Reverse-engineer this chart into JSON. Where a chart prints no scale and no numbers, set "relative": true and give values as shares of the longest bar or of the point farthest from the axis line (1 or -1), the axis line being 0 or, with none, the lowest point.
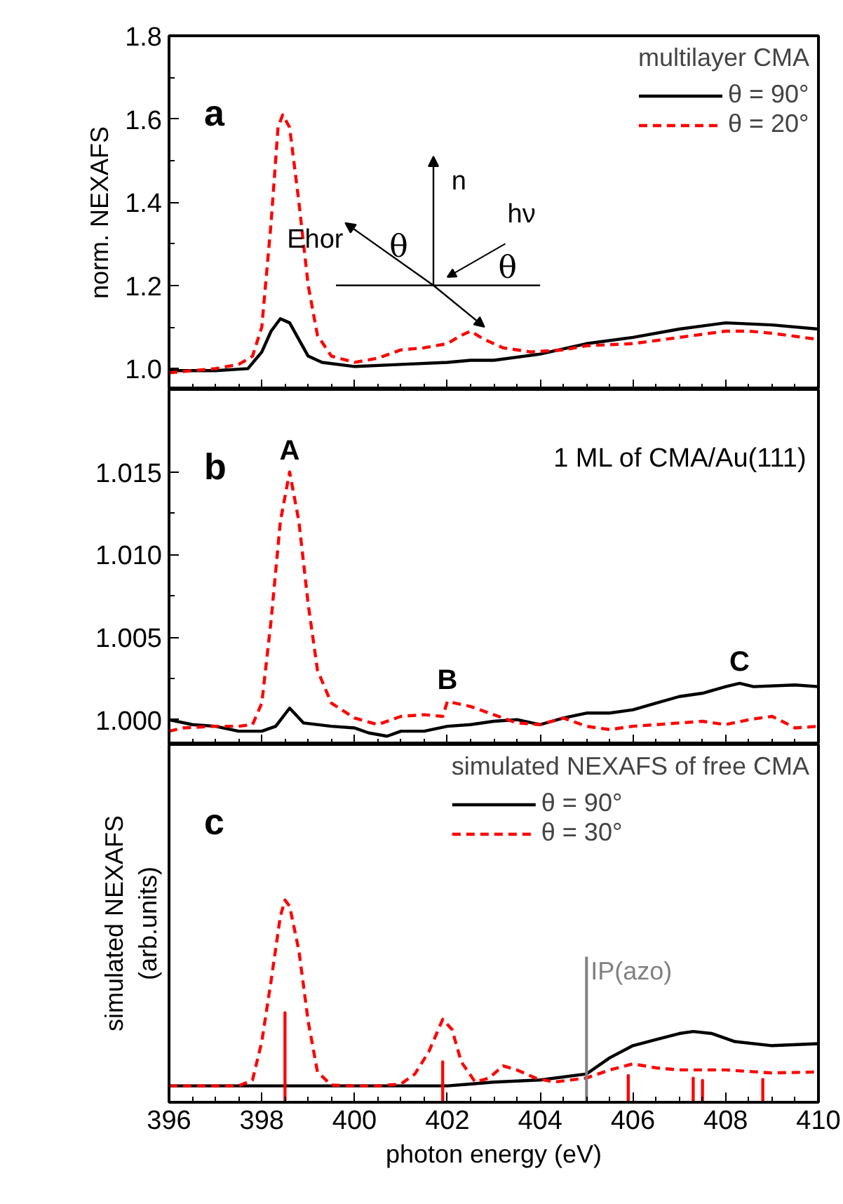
{
  "chart_data": [
    {
      "type": "line",
      "ylabel": "norm. NEXAFS",
      "legend_title": "multilayer CMA",
      "legend": "top right",
      "grid": false,
      "tick_labels": "y",
      "xlim": [
        396,
        410
      ],
      "xticks": [
        396,
        398,
        400,
        402,
        404,
        406,
        408,
        410
      ],
      "ylim": [
        0.95,
        1.8
      ],
      "yticks": [
        {
          "value": 1.0,
          "label": "1.0"
        },
        1.2,
        1.4,
        1.6,
        1.8
      ],
      "annotations": [
        "a",
        "n",
        "Ehor",
        "θ",
        "hν",
        "θ"
      ],
      "series": [
        {
          "name": "θ = 90°",
          "color": "#000000",
          "line_style": "solid",
          "x": [
            396,
            397,
            397.7,
            398.0,
            398.2,
            398.4,
            398.6,
            398.8,
            399.0,
            399.3,
            400,
            401,
            402,
            402.5,
            403,
            404,
            405,
            406,
            407,
            408,
            409,
            410
          ],
          "values": [
            0.995,
            0.995,
            1.0,
            1.04,
            1.09,
            1.12,
            1.11,
            1.07,
            1.03,
            1.015,
            1.005,
            1.01,
            1.015,
            1.02,
            1.02,
            1.035,
            1.06,
            1.075,
            1.095,
            1.11,
            1.105,
            1.095
          ]
        },
        {
          "name": "θ = 20°",
          "color": "#ff0000",
          "line_style": "dashed",
          "x": [
            396,
            397,
            397.5,
            397.8,
            398.0,
            398.2,
            398.35,
            398.45,
            398.6,
            398.8,
            399.0,
            399.2,
            399.5,
            400,
            400.5,
            401,
            401.5,
            402,
            402.3,
            402.5,
            402.8,
            403.2,
            403.8,
            404.5,
            405,
            406,
            407,
            408,
            408.5,
            409,
            410
          ],
          "values": [
            0.99,
            1.0,
            1.01,
            1.03,
            1.1,
            1.35,
            1.58,
            1.61,
            1.58,
            1.4,
            1.2,
            1.08,
            1.03,
            1.015,
            1.025,
            1.045,
            1.05,
            1.06,
            1.08,
            1.09,
            1.07,
            1.05,
            1.04,
            1.045,
            1.055,
            1.06,
            1.075,
            1.09,
            1.09,
            1.085,
            1.07
          ]
        }
      ]
    },
    {
      "type": "line",
      "grid": false,
      "tick_labels": "y",
      "xlim": [
        396,
        410
      ],
      "xticks": [
        396,
        398,
        400,
        402,
        404,
        406,
        408,
        410
      ],
      "ylim": [
        0.9985,
        1.02
      ],
      "yticks": [
        {
          "value": 1.0,
          "label": "1.000"
        },
        {
          "value": 1.005,
          "label": "1.005"
        },
        {
          "value": 1.01,
          "label": "1.010"
        },
        {
          "value": 1.015,
          "label": "1.015"
        }
      ],
      "annotations": [
        "b",
        "1 ML of CMA/Au(111)",
        {
          "text": "A",
          "x": 398.6,
          "y": 1.015
        },
        {
          "text": "B",
          "x": 402.0,
          "y": 1.0011
        },
        {
          "text": "C",
          "x": 408.3,
          "y": 1.0022
        }
      ],
      "series": [
        {
          "color": "#000000",
          "line_style": "solid",
          "x": [
            396,
            396.5,
            397,
            397.5,
            398,
            398.3,
            398.6,
            398.9,
            399.5,
            400,
            400.3,
            400.7,
            401,
            401.5,
            402,
            402.5,
            403,
            403.5,
            404,
            404.5,
            405,
            405.5,
            406,
            406.5,
            407,
            407.5,
            408,
            408.3,
            408.6,
            409.5,
            410
          ],
          "values": [
            1.0,
            0.9997,
            0.9996,
            0.9993,
            0.9993,
            0.9996,
            1.0007,
            0.9998,
            0.9996,
            0.9995,
            0.9992,
            0.999,
            0.9993,
            0.9993,
            0.9996,
            0.9997,
            0.9999,
            1.0,
            0.9997,
            1.0001,
            1.0004,
            1.0004,
            1.0006,
            1.001,
            1.0014,
            1.0016,
            1.002,
            1.0022,
            1.002,
            1.0021,
            1.002
          ]
        },
        {
          "color": "#ff0000",
          "line_style": "dashed",
          "x": [
            396,
            396.3,
            397,
            397.5,
            397.8,
            398.0,
            398.2,
            398.4,
            398.6,
            398.8,
            399.0,
            399.2,
            399.5,
            400,
            400.5,
            401,
            401.5,
            401.9,
            402,
            402.5,
            403,
            403.5,
            404,
            404.5,
            405,
            405.5,
            406,
            407,
            407.5,
            408,
            408.5,
            409,
            409.5,
            410
          ],
          "values": [
            0.9993,
            0.9995,
            0.9996,
            0.9996,
            0.9997,
            1.001,
            1.006,
            1.012,
            1.015,
            1.012,
            1.007,
            1.003,
            1.001,
            1.0001,
            0.9997,
            1.0002,
            1.0003,
            1.0002,
            1.0011,
            1.0008,
            1.0003,
            0.9998,
            0.9997,
            1.0001,
            0.9996,
            0.9994,
            0.9996,
            0.9998,
            0.9999,
            0.9997,
            1.0,
            1.0002,
            0.9995,
            0.9996
          ]
        }
      ]
    },
    {
      "type": "line",
      "relative": true,
      "ylabel": "simulated NEXAFS\n(arb.units)",
      "xlabel": "photon energy (eV)",
      "legend_title": "simulated NEXAFS of free CMA",
      "legend": "top right",
      "grid": false,
      "tick_labels": "x",
      "xlim": [
        396,
        410
      ],
      "xticks": [
        396,
        398,
        400,
        402,
        404,
        406,
        408,
        410
      ],
      "annotations": [
        "c"
      ],
      "ref_lines": [
        {
          "axis": "x",
          "value": 405,
          "label": "IP(azo)",
          "color": "#808080"
        }
      ],
      "series": [
        {
          "name": "θ = 90°",
          "color": "#000000",
          "line_style": "solid",
          "x": [
            396,
            400,
            402,
            402.5,
            403,
            404,
            405,
            405.5,
            406,
            406.5,
            407,
            407.3,
            407.7,
            408.2,
            409,
            410
          ],
          "values": [
            0.081,
            0.081,
            0.081,
            0.09,
            0.1,
            0.11,
            0.14,
            0.22,
            0.28,
            0.31,
            0.34,
            0.35,
            0.34,
            0.3,
            0.28,
            0.29
          ]
        },
        {
          "name": "θ = 30°",
          "color": "#ff0000",
          "line_style": "dashed",
          "x": [
            396,
            397.5,
            397.8,
            398.0,
            398.2,
            398.4,
            398.5,
            398.6,
            398.8,
            399.0,
            399.2,
            399.5,
            400,
            400.5,
            401,
            401.3,
            401.6,
            401.9,
            402.1,
            402.3,
            402.6,
            402.9,
            403.2,
            403.5,
            403.9,
            404.3,
            405,
            405.5,
            406,
            406.5,
            407,
            408,
            409,
            410
          ],
          "values": [
            0.081,
            0.081,
            0.11,
            0.3,
            0.6,
            0.92,
            1.0,
            0.97,
            0.75,
            0.4,
            0.15,
            0.085,
            0.081,
            0.081,
            0.09,
            0.14,
            0.25,
            0.41,
            0.36,
            0.2,
            0.1,
            0.12,
            0.18,
            0.16,
            0.12,
            0.1,
            0.12,
            0.16,
            0.19,
            0.17,
            0.16,
            0.16,
            0.145,
            0.15
          ]
        },
        {
          "type": "bar",
          "color": "#ff0000",
          "x": [
            398.5,
            401.9,
            405.9,
            407.3,
            407.5,
            408.8
          ],
          "values": [
            0.446,
            0.203,
            0.135,
            0.122,
            0.111,
            0.116
          ]
        }
      ]
    }
  ]
}
